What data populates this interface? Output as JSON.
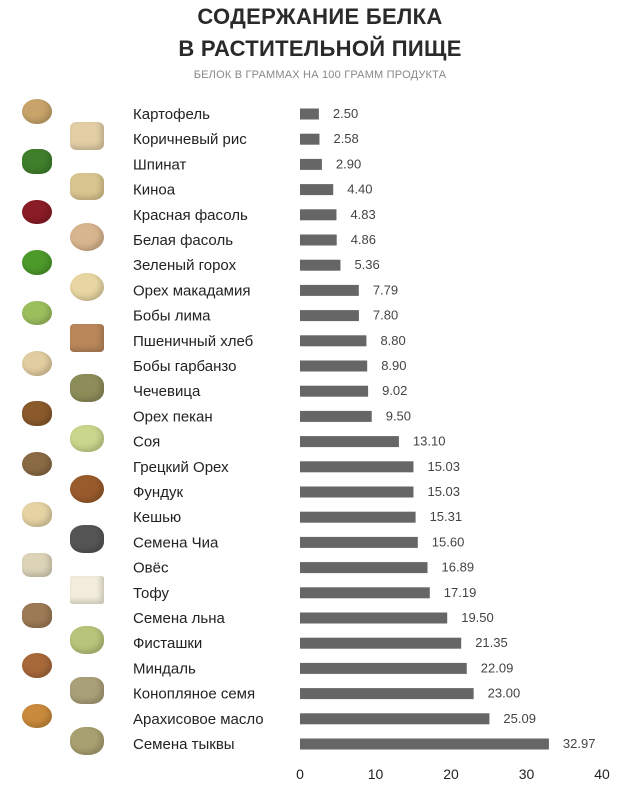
{
  "title_line1": "СОДЕРЖАНИЕ БЕЛКА",
  "title_line2": "В РАСТИТЕЛЬНОЙ ПИЩЕ",
  "subtitle": "БЕЛОК В ГРАММАХ НА 100 ГРАММ ПРОДУКТА",
  "colors": {
    "bar": "#666666",
    "text": "#222222",
    "value": "#444444"
  },
  "chart_data": {
    "type": "bar",
    "orientation": "horizontal",
    "title": "СОДЕРЖАНИЕ БЕЛКА В РАСТИТЕЛЬНОЙ ПИЩЕ",
    "subtitle": "БЕЛОК В ГРАММАХ НА 100 ГРАММ ПРОДУКТА",
    "categories": [
      "Картофель",
      "Коричневый рис",
      "Шпинат",
      "Киноа",
      "Красная фасоль",
      "Белая фасоль",
      "Зеленый горох",
      "Орех макадамия",
      "Бобы лима",
      "Пшеничный хлеб",
      "Бобы гарбанзо",
      "Чечевица",
      "Орех пекан",
      "Соя",
      "Грецкий Орех",
      "Фундук",
      "Кешью",
      "Семена Чиа",
      "Овёс",
      "Тофу",
      "Семена льна",
      "Фисташки",
      "Миндаль",
      "Конопляное семя",
      "Арахисовое масло",
      "Семена тыквы"
    ],
    "values": [
      2.5,
      2.58,
      2.9,
      4.4,
      4.83,
      4.86,
      5.36,
      7.79,
      7.8,
      8.8,
      8.9,
      9.02,
      9.5,
      13.1,
      15.03,
      15.03,
      15.31,
      15.6,
      16.89,
      17.19,
      19.5,
      21.35,
      22.09,
      23.0,
      25.09,
      32.97
    ],
    "value_labels": [
      "2.50",
      "2.58",
      "2.90",
      "4.40",
      "4.83",
      "4.86",
      "5.36",
      "7.79",
      "7.80",
      "8.80",
      "8.90",
      "9.02",
      "9.50",
      "13.10",
      "15.03",
      "15.03",
      "15.31",
      "15.60",
      "16.89",
      "17.19",
      "19.50",
      "21.35",
      "22.09",
      "23.00",
      "25.09",
      "32.97"
    ],
    "x_ticks": [
      "0",
      "10",
      "20",
      "30",
      "40"
    ],
    "xlim": [
      0,
      40
    ],
    "grid": false,
    "legend": "none"
  },
  "icons": [
    "potato-icon",
    "brown-rice-icon",
    "spinach-icon",
    "quinoa-icon",
    "red-beans-icon",
    "white-beans-icon",
    "green-peas-icon",
    "macadamia-icon",
    "lima-beans-icon",
    "wheat-bread-icon",
    "garbanzo-icon",
    "lentils-icon",
    "pecan-icon",
    "soybeans-icon",
    "walnut-icon",
    "hazelnut-icon",
    "cashew-icon",
    "chia-icon",
    "oats-icon",
    "tofu-icon",
    "flax-icon",
    "pistachio-icon",
    "almond-icon",
    "hemp-seed-icon",
    "peanut-butter-icon",
    "pumpkin-seed-icon"
  ]
}
